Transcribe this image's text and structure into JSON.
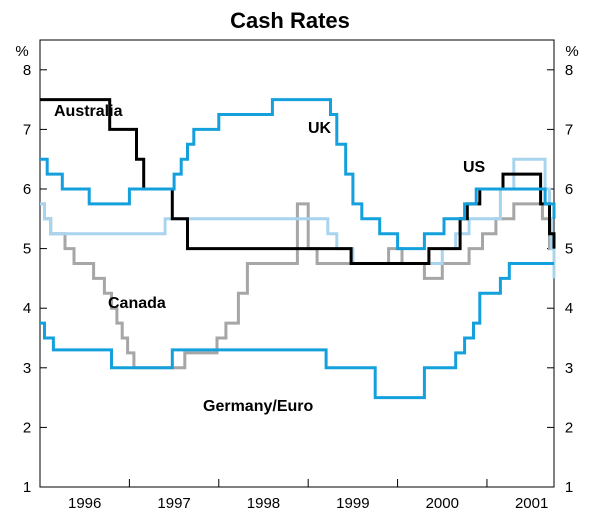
{
  "chart_data": {
    "type": "line",
    "title": "Cash Rates",
    "y_unit_left": "%",
    "y_unit_right": "%",
    "ylim": [
      1,
      8.5
    ],
    "yticks": [
      1,
      2,
      3,
      4,
      5,
      6,
      7,
      8
    ],
    "xlim": [
      1995.5,
      2001.25
    ],
    "x_tick_labels": [
      {
        "label": "1996",
        "x": 1996.0
      },
      {
        "label": "1997",
        "x": 1997.0
      },
      {
        "label": "1998",
        "x": 1998.0
      },
      {
        "label": "1999",
        "x": 1999.0
      },
      {
        "label": "2000",
        "x": 2000.0
      },
      {
        "label": "2001",
        "x": 2001.0
      }
    ],
    "x_year_boundaries": [
      1996.5,
      1997.5,
      1998.5,
      1999.5,
      2000.5
    ],
    "grid": false,
    "series": [
      {
        "name": "Australia",
        "color": "#000000",
        "points": [
          [
            1995.5,
            7.5
          ],
          [
            1996.28,
            7.0
          ],
          [
            1996.58,
            6.5
          ],
          [
            1996.66,
            6.0
          ],
          [
            1996.98,
            5.5
          ],
          [
            1997.15,
            5.0
          ],
          [
            1998.98,
            4.75
          ],
          [
            1999.85,
            5.0
          ],
          [
            2000.2,
            5.5
          ],
          [
            2000.28,
            5.75
          ],
          [
            2000.42,
            6.0
          ],
          [
            2000.68,
            6.25
          ],
          [
            2001.1,
            5.75
          ],
          [
            2001.2,
            5.25
          ],
          [
            2001.25,
            5.0
          ]
        ]
      },
      {
        "name": "UK",
        "color": "#14a0dc",
        "points": [
          [
            1995.5,
            6.5
          ],
          [
            1995.58,
            6.25
          ],
          [
            1995.75,
            6.0
          ],
          [
            1996.05,
            5.75
          ],
          [
            1996.5,
            6.0
          ],
          [
            1997.0,
            6.25
          ],
          [
            1997.08,
            6.5
          ],
          [
            1997.15,
            6.75
          ],
          [
            1997.22,
            7.0
          ],
          [
            1997.5,
            7.25
          ],
          [
            1998.1,
            7.5
          ],
          [
            1998.75,
            7.25
          ],
          [
            1998.82,
            6.75
          ],
          [
            1998.92,
            6.25
          ],
          [
            1999.0,
            5.75
          ],
          [
            1999.1,
            5.5
          ],
          [
            1999.3,
            5.25
          ],
          [
            1999.5,
            5.0
          ],
          [
            1999.8,
            5.25
          ],
          [
            2000.02,
            5.5
          ],
          [
            2000.25,
            5.75
          ],
          [
            2000.38,
            6.0
          ],
          [
            2001.05,
            6.0
          ],
          [
            2001.15,
            5.75
          ],
          [
            2001.25,
            5.5
          ]
        ]
      },
      {
        "name": "US",
        "color": "#a8d4ee",
        "points": [
          [
            1995.5,
            5.75
          ],
          [
            1995.55,
            5.5
          ],
          [
            1995.62,
            5.25
          ],
          [
            1996.9,
            5.5
          ],
          [
            1998.72,
            5.25
          ],
          [
            1998.82,
            5.0
          ],
          [
            1999.0,
            4.75
          ],
          [
            2000.0,
            5.0
          ],
          [
            2000.15,
            5.25
          ],
          [
            2000.3,
            5.5
          ],
          [
            2000.65,
            6.0
          ],
          [
            2000.8,
            6.5
          ],
          [
            2001.15,
            6.0
          ],
          [
            2001.2,
            5.5
          ],
          [
            2001.22,
            5.0
          ],
          [
            2001.25,
            4.5
          ]
        ]
      },
      {
        "name": "Canada",
        "color": "#a6a6a6",
        "points": [
          [
            1995.5,
            5.75
          ],
          [
            1995.55,
            5.5
          ],
          [
            1995.62,
            5.25
          ],
          [
            1995.78,
            5.0
          ],
          [
            1995.88,
            4.75
          ],
          [
            1996.1,
            4.5
          ],
          [
            1996.22,
            4.25
          ],
          [
            1996.3,
            4.0
          ],
          [
            1996.36,
            3.75
          ],
          [
            1996.42,
            3.5
          ],
          [
            1996.48,
            3.25
          ],
          [
            1996.55,
            3.0
          ],
          [
            1997.12,
            3.25
          ],
          [
            1997.48,
            3.5
          ],
          [
            1997.58,
            3.75
          ],
          [
            1997.72,
            4.25
          ],
          [
            1997.82,
            4.75
          ],
          [
            1998.38,
            5.75
          ],
          [
            1998.5,
            5.0
          ],
          [
            1998.6,
            4.75
          ],
          [
            1999.4,
            5.0
          ],
          [
            1999.55,
            4.75
          ],
          [
            1999.8,
            4.5
          ],
          [
            2000.0,
            4.75
          ],
          [
            2000.3,
            5.0
          ],
          [
            2000.45,
            5.25
          ],
          [
            2000.6,
            5.5
          ],
          [
            2000.8,
            5.75
          ],
          [
            2001.02,
            5.75
          ],
          [
            2001.12,
            5.5
          ],
          [
            2001.2,
            5.0
          ],
          [
            2001.25,
            4.75
          ]
        ]
      },
      {
        "name": "Germany/Euro",
        "color": "#14a0dc",
        "points": [
          [
            1995.5,
            3.75
          ],
          [
            1995.55,
            3.5
          ],
          [
            1995.65,
            3.3
          ],
          [
            1996.3,
            3.0
          ],
          [
            1996.98,
            3.3
          ],
          [
            1998.7,
            3.0
          ],
          [
            1999.25,
            2.5
          ],
          [
            1999.8,
            3.0
          ],
          [
            2000.15,
            3.25
          ],
          [
            2000.25,
            3.5
          ],
          [
            2000.35,
            3.75
          ],
          [
            2000.42,
            4.25
          ],
          [
            2000.65,
            4.5
          ],
          [
            2000.75,
            4.75
          ],
          [
            2001.25,
            4.75
          ]
        ]
      }
    ]
  }
}
